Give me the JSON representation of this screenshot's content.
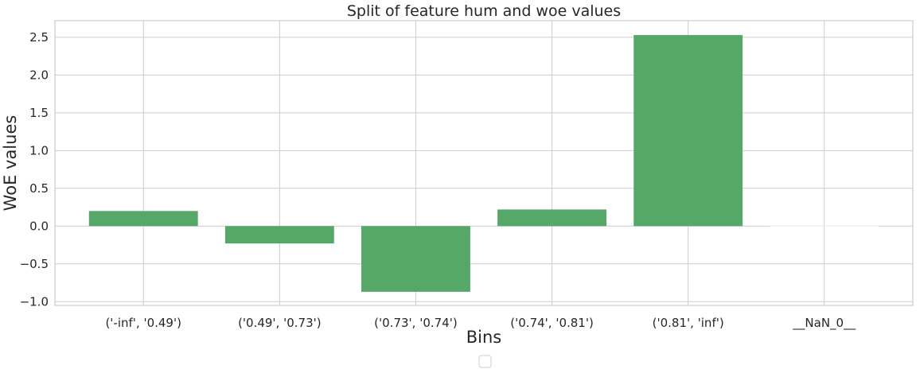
{
  "chart_data": {
    "type": "bar",
    "title": "Split of feature hum and woe values",
    "xlabel": "Bins",
    "ylabel": "WoE values",
    "categories": [
      "('-inf', '0.49')",
      "('0.49', '0.73')",
      "('0.73', '0.74')",
      "('0.74', '0.81')",
      "('0.81', 'inf')",
      "__NaN_0__"
    ],
    "values": [
      0.2,
      -0.23,
      -0.87,
      0.22,
      2.53,
      0.0
    ],
    "ylim": [
      -1.05,
      2.72
    ],
    "yticks": [
      -1.0,
      -0.5,
      0.0,
      0.5,
      1.0,
      1.5,
      2.0,
      2.5
    ],
    "ytick_labels": [
      "−1.0",
      "−0.5",
      "0.0",
      "0.5",
      "1.0",
      "1.5",
      "2.0",
      "2.5"
    ],
    "bar_color": "#55a868",
    "grid": true,
    "legend": {
      "placement": "bottom-center",
      "entries": []
    }
  }
}
